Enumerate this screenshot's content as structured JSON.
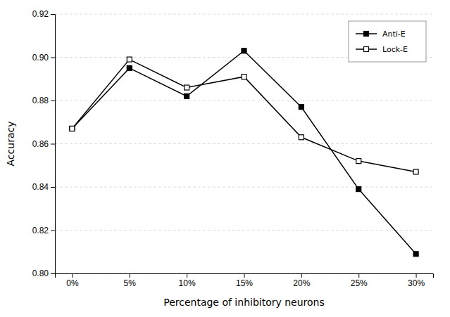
{
  "chart_data": {
    "type": "line",
    "xlabel": "Percentage of inhibitory neurons",
    "ylabel": "Accuracy",
    "x": [
      0,
      5,
      10,
      15,
      20,
      25,
      30
    ],
    "series": [
      {
        "name": "Anti-E",
        "color": "#000000",
        "marker": "square",
        "values": [
          0.867,
          0.895,
          0.882,
          0.903,
          0.877,
          0.839,
          0.809
        ]
      },
      {
        "name": "Lock-E",
        "color": "#000000",
        "marker": "square-open",
        "values": [
          0.867,
          0.899,
          0.886,
          0.891,
          0.863,
          0.852,
          0.847
        ]
      }
    ],
    "xlim": [
      -1.5,
      31.5
    ],
    "xticks": [
      {
        "value": 0,
        "label": "0%"
      },
      {
        "value": 5,
        "label": "5%"
      },
      {
        "value": 10,
        "label": "10%"
      },
      {
        "value": 15,
        "label": "15%"
      },
      {
        "value": 20,
        "label": "20%"
      },
      {
        "value": 25,
        "label": "25%"
      },
      {
        "value": 30,
        "label": "30%"
      }
    ],
    "ylim": [
      0.8,
      0.92
    ],
    "yticks": [
      {
        "value": 0.8,
        "label": "0.80"
      },
      0.82,
      0.84,
      0.86,
      {
        "value": 0.88,
        "label": "0.88"
      },
      {
        "value": 0.9,
        "label": "0.90"
      },
      0.92
    ],
    "grid": true,
    "legend": "upper right"
  }
}
